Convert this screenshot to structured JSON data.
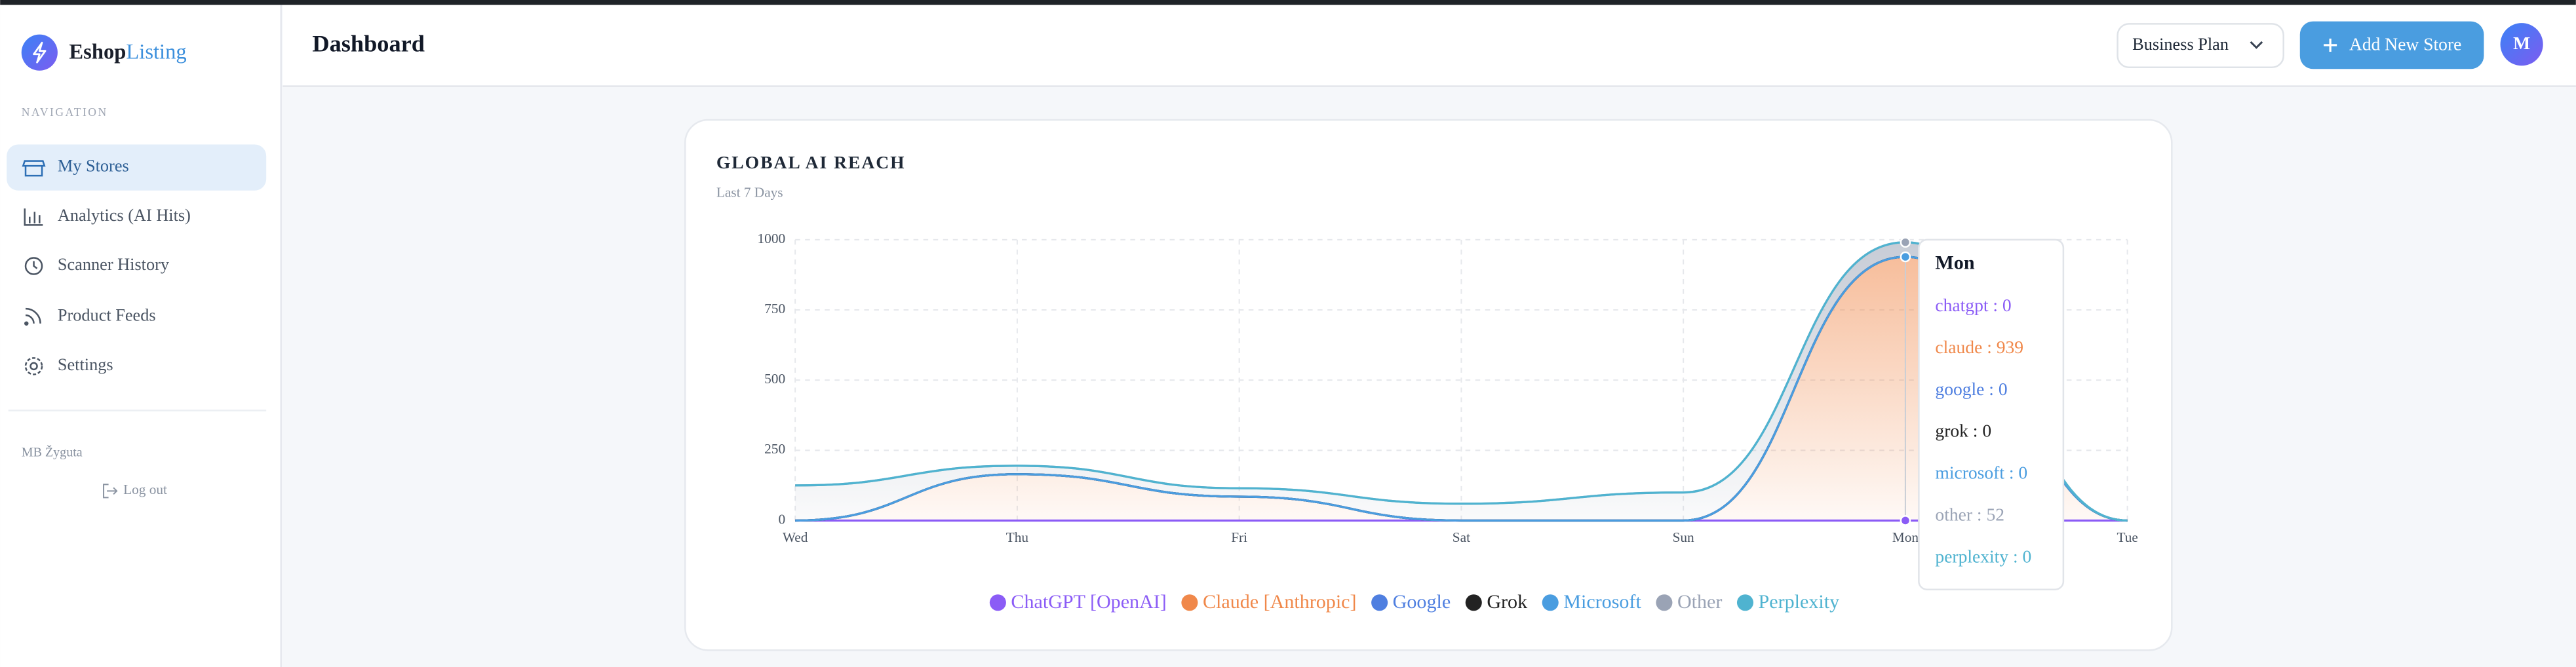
{
  "brand": {
    "first": "Eshop",
    "second": "Listing"
  },
  "sidebar": {
    "section": "NAVIGATION",
    "items": [
      "My Stores",
      "Analytics (AI Hits)",
      "Scanner History",
      "Product Feeds",
      "Settings"
    ],
    "user": "MB Žyguta",
    "logout": "Log out"
  },
  "header": {
    "title": "Dashboard",
    "plan": "Business Plan",
    "add_button": "Add New Store",
    "avatar": "M"
  },
  "chart_data": {
    "type": "area",
    "title": "GLOBAL AI REACH",
    "subtitle": "Last 7 Days",
    "stacked": true,
    "grid": true,
    "categories": [
      "Wed",
      "Thu",
      "Fri",
      "Sat",
      "Sun",
      "Mon",
      "Tue"
    ],
    "ylim": [
      0,
      1000
    ],
    "yticks": [
      0,
      250,
      500,
      750,
      1000
    ],
    "series": [
      {
        "name": "ChatGPT [OpenAI]",
        "color": "#8b5cf6",
        "values": [
          0,
          0,
          0,
          0,
          0,
          0,
          0
        ]
      },
      {
        "name": "Claude [Anthropic]",
        "color": "#f0884a",
        "values": [
          0,
          165,
          85,
          0,
          0,
          939,
          0
        ]
      },
      {
        "name": "Google",
        "color": "#4f7fe0",
        "values": [
          0,
          0,
          0,
          0,
          0,
          0,
          0
        ]
      },
      {
        "name": "Grok",
        "color": "#222222",
        "values": [
          0,
          0,
          0,
          0,
          0,
          0,
          0
        ]
      },
      {
        "name": "Microsoft",
        "color": "#4a9de0",
        "values": [
          0,
          0,
          0,
          0,
          0,
          0,
          0
        ]
      },
      {
        "name": "Other",
        "color": "#9aa3b5",
        "values": [
          125,
          30,
          30,
          60,
          100,
          52,
          0
        ]
      },
      {
        "name": "Perplexity",
        "color": "#4fb3d0",
        "values": [
          0,
          0,
          0,
          0,
          0,
          0,
          0
        ]
      }
    ],
    "tooltip": {
      "title": "Mon",
      "items": [
        "chatgpt : 0",
        "claude : 939",
        "google : 0",
        "grok : 0",
        "microsoft : 0",
        "other : 52",
        "perplexity : 0"
      ]
    }
  }
}
